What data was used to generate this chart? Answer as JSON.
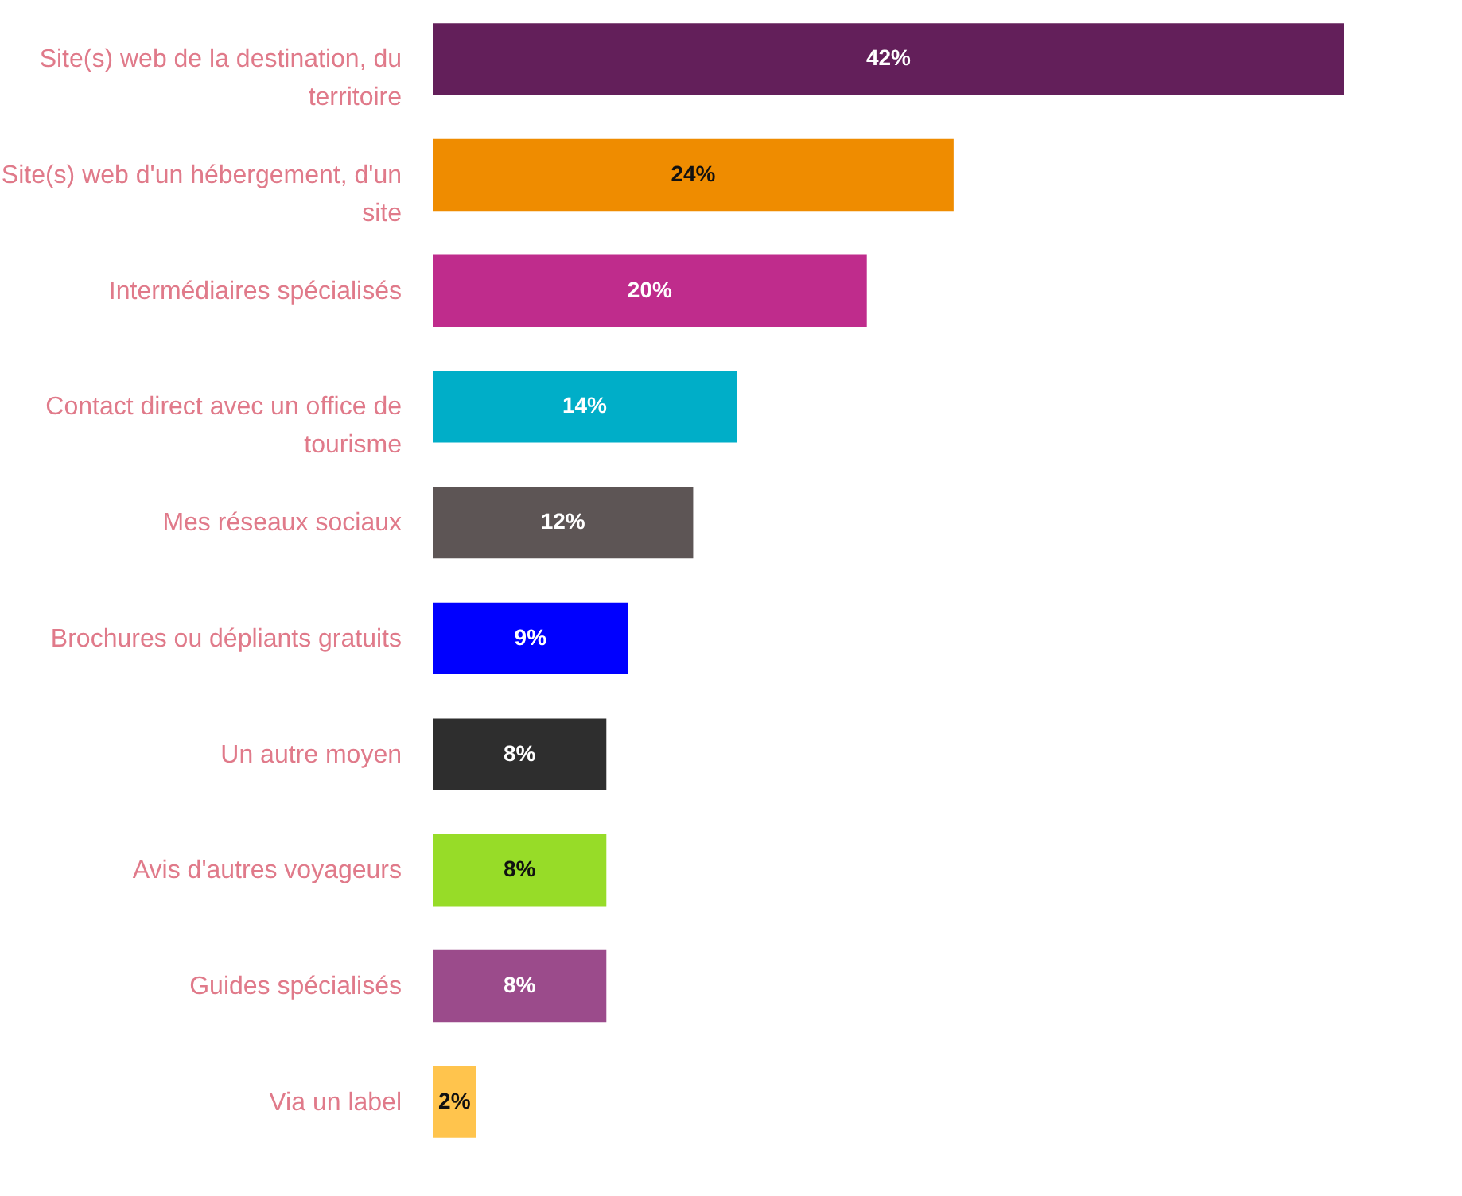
{
  "chart_data": {
    "type": "bar",
    "orientation": "horizontal",
    "categories": [
      "Site(s) web de la destination, du territoire",
      "Site(s) web d'un hébergement, d'un site",
      "Intermédiaires spécialisés",
      "Contact direct avec un office de tourisme",
      "Mes réseaux sociaux",
      "Brochures ou dépliants gratuits",
      "Un autre moyen",
      "Avis d'autres voyageurs",
      "Guides spécialisés",
      "Via un label"
    ],
    "values": [
      42,
      24,
      20,
      14,
      12,
      9,
      8,
      8,
      8,
      2
    ],
    "value_labels": [
      "42%",
      "24%",
      "20%",
      "14%",
      "12%",
      "9%",
      "8%",
      "8%",
      "8%",
      "2%"
    ],
    "colors": [
      "#631f5a",
      "#ef8c00",
      "#bf2c8c",
      "#00aec8",
      "#5d5555",
      "#0000ff",
      "#2e2e2e",
      "#97dc28",
      "#9b4b8b",
      "#ffc44d"
    ]
  }
}
